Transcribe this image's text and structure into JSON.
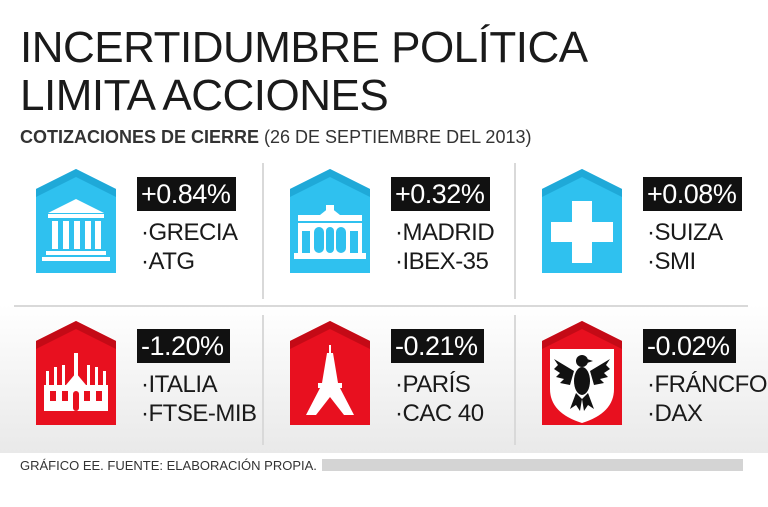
{
  "title_line1": "INCERTIDUMBRE POLÍTICA",
  "title_line2": "LIMITA ACCIONES",
  "subtitle_bold": "COTIZACIONES DE CIERRE",
  "subtitle_rest": " (26 DE SEPTIEMBRE DEL 2013)",
  "colors": {
    "positive": "#2fc1ef",
    "negative": "#e8101f",
    "badge": "#111111"
  },
  "markets": [
    {
      "change": "+0.84%",
      "country": "GRECIA",
      "index": "ATG",
      "icon": "parthenon-icon",
      "trend": "up"
    },
    {
      "change": "+0.32%",
      "country": "MADRID",
      "index": "IBEX-35",
      "icon": "puerta-de-alcala-icon",
      "trend": "up"
    },
    {
      "change": "+0.08%",
      "country": "SUIZA",
      "index": "SMI",
      "icon": "swiss-cross-icon",
      "trend": "up"
    },
    {
      "change": "-1.20%",
      "country": "ITALIA",
      "index": "FTSE-MIB",
      "icon": "milan-cathedral-icon",
      "trend": "down"
    },
    {
      "change": "-0.21%",
      "country": "PARÍS",
      "index": "CAC 40",
      "icon": "eiffel-tower-icon",
      "trend": "down"
    },
    {
      "change": "-0.02%",
      "country": "FRÁNCFORT",
      "index": "DAX",
      "icon": "german-eagle-icon",
      "trend": "down"
    }
  ],
  "footer": "GRÁFICO EE. FUENTE: ELABORACIÓN PROPIA."
}
